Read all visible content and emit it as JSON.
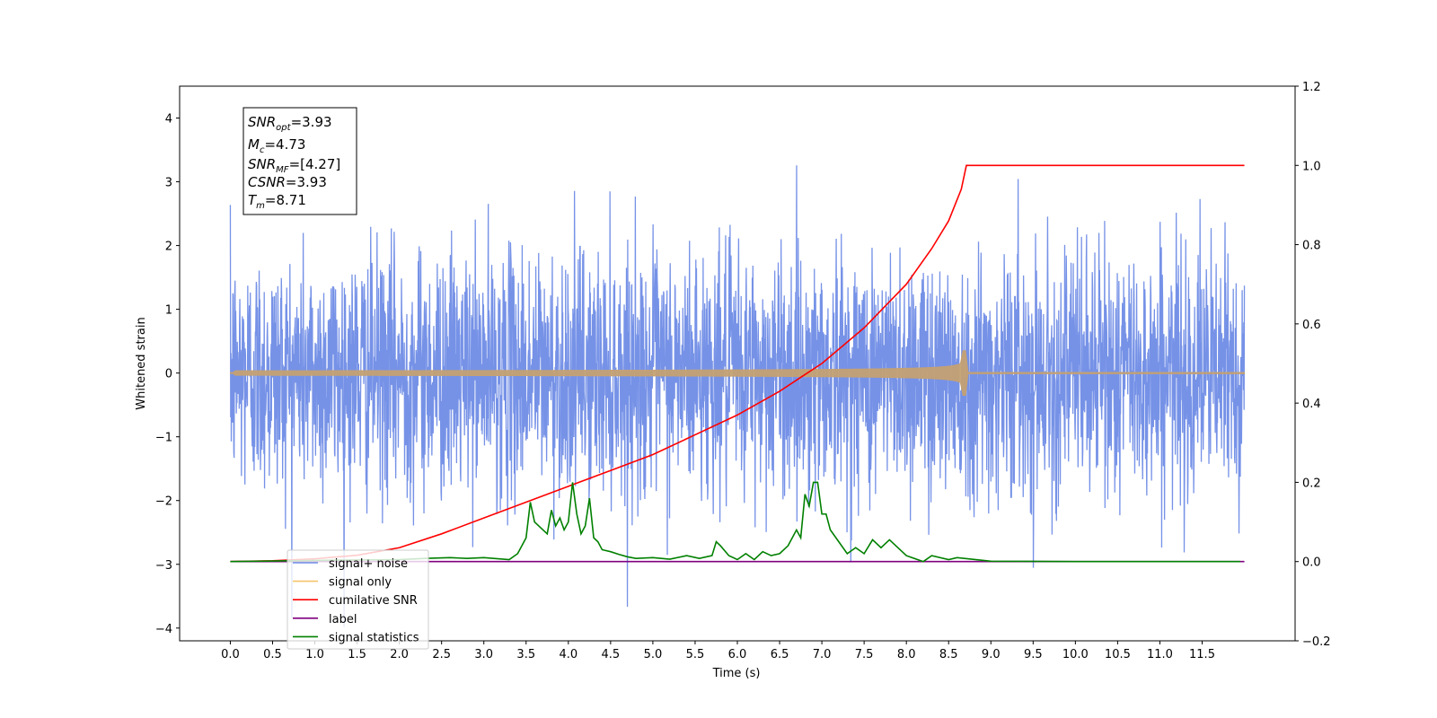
{
  "chart_data": {
    "type": "line",
    "xlabel": "Time (s)",
    "ylabel": "Whitened strain",
    "xlim": [
      -0.6,
      12.6
    ],
    "ylim": [
      -4.2,
      4.5
    ],
    "y2lim": [
      -0.2,
      1.2
    ],
    "x_ticks": [
      "0.0",
      "0.5",
      "1.0",
      "1.5",
      "2.0",
      "2.5",
      "3.0",
      "3.5",
      "4.0",
      "4.5",
      "5.0",
      "5.5",
      "6.0",
      "6.5",
      "7.0",
      "7.5",
      "8.0",
      "8.5",
      "9.0",
      "9.5",
      "10.0",
      "10.5",
      "11.0",
      "11.5"
    ],
    "y_ticks": [
      "−4",
      "−3",
      "−2",
      "−1",
      "0",
      "1",
      "2",
      "3",
      "4"
    ],
    "y2_ticks": [
      "−0.2",
      "0.0",
      "0.2",
      "0.4",
      "0.6",
      "0.8",
      "1.0",
      "1.2"
    ],
    "grid": false,
    "legend_position": "lower-left",
    "annotation": {
      "snr_opt": {
        "base": "SNR",
        "sub": "opt",
        "value": "=3.93"
      },
      "mc": {
        "base": "M",
        "sub": "c",
        "value": "=4.73"
      },
      "snr_mf": {
        "base": "SNR",
        "sub": "MF",
        "value": "=[4.27]"
      },
      "csnr": {
        "base": "CSNR",
        "sub": "",
        "value": "=3.93"
      },
      "tm": {
        "base": "T",
        "sub": "m",
        "value": "=8.71"
      }
    },
    "series": [
      {
        "name": "signal+ noise",
        "color": "#6f8ce6",
        "axis": "left",
        "noise_std": 0.95,
        "x_range": [
          0.0,
          12.0
        ]
      },
      {
        "name": "signal only",
        "color": "#f7c36b",
        "axis": "left",
        "chirp_end": 8.71,
        "peak_amplitude": 0.35,
        "x_range": [
          0.0,
          12.0
        ]
      },
      {
        "name": "cumilative SNR",
        "color": "#ff0000",
        "axis": "right",
        "x": [
          0.0,
          0.5,
          1.0,
          1.5,
          2.0,
          2.5,
          3.0,
          3.5,
          4.0,
          4.5,
          5.0,
          5.5,
          6.0,
          6.5,
          7.0,
          7.5,
          8.0,
          8.3,
          8.5,
          8.65,
          8.71,
          9.0,
          10.0,
          11.0,
          12.0
        ],
        "y": [
          0.0,
          0.002,
          0.007,
          0.016,
          0.035,
          0.07,
          0.11,
          0.15,
          0.19,
          0.23,
          0.27,
          0.32,
          0.37,
          0.43,
          0.5,
          0.59,
          0.7,
          0.79,
          0.86,
          0.94,
          1.0,
          1.0,
          1.0,
          1.0,
          1.0
        ]
      },
      {
        "name": "label",
        "color": "#800080",
        "axis": "right",
        "x": [
          0.0,
          12.0
        ],
        "y": [
          0.0,
          0.0
        ]
      },
      {
        "name": "signal statistics",
        "color": "#008000",
        "axis": "right",
        "x": [
          0.0,
          1.0,
          2.0,
          2.3,
          2.6,
          2.8,
          3.0,
          3.3,
          3.4,
          3.5,
          3.55,
          3.6,
          3.7,
          3.75,
          3.8,
          3.85,
          3.9,
          3.95,
          4.0,
          4.05,
          4.1,
          4.15,
          4.2,
          4.25,
          4.3,
          4.35,
          4.4,
          4.5,
          4.6,
          4.7,
          4.8,
          5.0,
          5.2,
          5.4,
          5.55,
          5.7,
          5.75,
          5.8,
          5.9,
          6.0,
          6.1,
          6.2,
          6.3,
          6.4,
          6.5,
          6.6,
          6.7,
          6.75,
          6.8,
          6.85,
          6.9,
          6.95,
          7.0,
          7.05,
          7.1,
          7.2,
          7.3,
          7.4,
          7.5,
          7.6,
          7.7,
          7.8,
          8.0,
          8.2,
          8.3,
          8.5,
          8.6,
          9.0,
          10.0,
          11.0,
          11.95
        ],
        "y": [
          0.0,
          0.003,
          0.005,
          0.008,
          0.01,
          0.008,
          0.01,
          0.005,
          0.02,
          0.06,
          0.15,
          0.1,
          0.08,
          0.07,
          0.13,
          0.09,
          0.11,
          0.08,
          0.1,
          0.2,
          0.12,
          0.07,
          0.09,
          0.16,
          0.06,
          0.05,
          0.03,
          0.025,
          0.018,
          0.012,
          0.008,
          0.01,
          0.006,
          0.015,
          0.008,
          0.015,
          0.05,
          0.04,
          0.015,
          0.005,
          0.02,
          0.005,
          0.025,
          0.015,
          0.02,
          0.04,
          0.08,
          0.06,
          0.17,
          0.14,
          0.2,
          0.2,
          0.12,
          0.12,
          0.08,
          0.05,
          0.02,
          0.035,
          0.02,
          0.055,
          0.035,
          0.055,
          0.015,
          0.0,
          0.015,
          0.005,
          0.01,
          0.001,
          0.0,
          0.0,
          0.0
        ]
      }
    ]
  }
}
